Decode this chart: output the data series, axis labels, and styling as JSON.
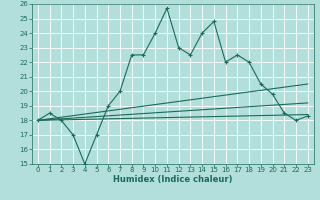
{
  "title": "",
  "xlabel": "Humidex (Indice chaleur)",
  "bg_color": "#b2dfdb",
  "grid_color": "#ffffff",
  "line_color": "#1a6b5a",
  "xlim": [
    -0.5,
    23.5
  ],
  "ylim": [
    15,
    26
  ],
  "xticks": [
    0,
    1,
    2,
    3,
    4,
    5,
    6,
    7,
    8,
    9,
    10,
    11,
    12,
    13,
    14,
    15,
    16,
    17,
    18,
    19,
    20,
    21,
    22,
    23
  ],
  "yticks": [
    15,
    16,
    17,
    18,
    19,
    20,
    21,
    22,
    23,
    24,
    25,
    26
  ],
  "main_x": [
    0,
    1,
    2,
    3,
    4,
    5,
    6,
    7,
    8,
    9,
    10,
    11,
    12,
    13,
    14,
    15,
    16,
    17,
    18,
    19,
    20,
    21,
    22,
    23
  ],
  "main_y": [
    18,
    18.5,
    18,
    17,
    15,
    17,
    19,
    20,
    22.5,
    22.5,
    24,
    25.7,
    23,
    22.5,
    24,
    24.8,
    22,
    22.5,
    22,
    20.5,
    19.8,
    18.5,
    18,
    18.3
  ],
  "line1_x": [
    0,
    23
  ],
  "line1_y": [
    18.0,
    20.5
  ],
  "line2_x": [
    0,
    23
  ],
  "line2_y": [
    18.0,
    19.2
  ],
  "line3_x": [
    0,
    23
  ],
  "line3_y": [
    18.0,
    18.4
  ],
  "tick_labelsize": 5,
  "xlabel_fontsize": 6,
  "linewidth": 0.8,
  "marker_size": 3
}
